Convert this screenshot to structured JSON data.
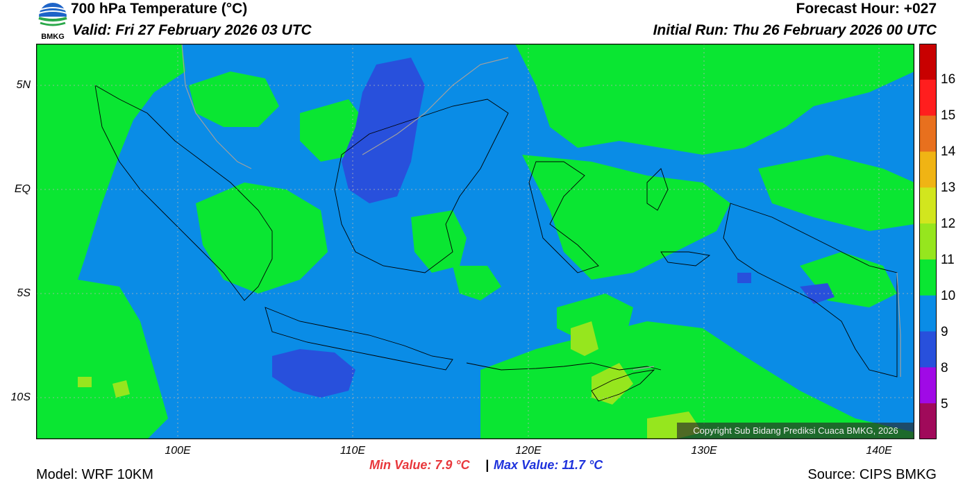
{
  "logo": {
    "text": "BMKG",
    "icon": "bmkg-logo-icon"
  },
  "header": {
    "title": "700 hPa Temperature (°C)",
    "valid": "Valid: Fri 27 February 2026 03 UTC",
    "forecast_hour": "Forecast Hour: +027",
    "initial_run": "Initial Run: Thu 26 February 2026 00 UTC"
  },
  "axes": {
    "lat_labels": [
      "5N",
      "EQ",
      "5S",
      "10S"
    ],
    "lon_labels": [
      "100E",
      "110E",
      "120E",
      "130E",
      "140E"
    ]
  },
  "colorbar": {
    "labels": [
      "16",
      "15",
      "14",
      "13",
      "12",
      "11",
      "10",
      "9",
      "8",
      "5"
    ],
    "colors": [
      "#c80000",
      "#ff1e1e",
      "#e8701e",
      "#f0b414",
      "#d2e61e",
      "#96e61e",
      "#0ae632",
      "#0a8ce6",
      "#2850dc",
      "#a00ae6",
      "#a00a5a"
    ]
  },
  "stats": {
    "min": "Min Value: 7.9 °C",
    "sep": "|",
    "max": "Max Value: 11.7 °C",
    "min_color": "#e8383c",
    "max_color": "#1e32dc"
  },
  "footer": {
    "model": "Model: WRF 10KM",
    "source": "Source: CIPS BMKG",
    "copyright": "Copyright Sub Bidang Prediksi Cuaca BMKG, 2026"
  }
}
